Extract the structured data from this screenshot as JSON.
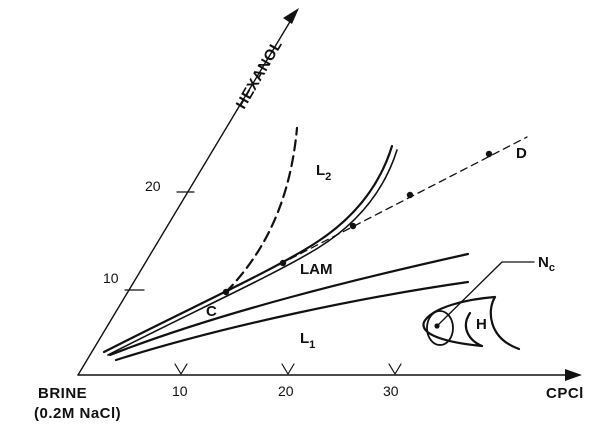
{
  "axes": {
    "hexanol_label": "HEXANOL",
    "cpcl_label": "CPCl",
    "brine_label": "BRINE",
    "brine_sub": "(0.2M NaCl)"
  },
  "ticks": {
    "hexanol": [
      "10",
      "20"
    ],
    "cpcl": [
      "10",
      "20",
      "30"
    ]
  },
  "regions": {
    "l2": "L",
    "l2_sub": "2",
    "l1": "L",
    "l1_sub": "1",
    "lam": "LAM",
    "h": "H",
    "nc": "N",
    "nc_sub": "c"
  },
  "points": {
    "c": "C",
    "d": "D"
  },
  "colors": {
    "ink": "#111111",
    "background": "#ffffff"
  }
}
